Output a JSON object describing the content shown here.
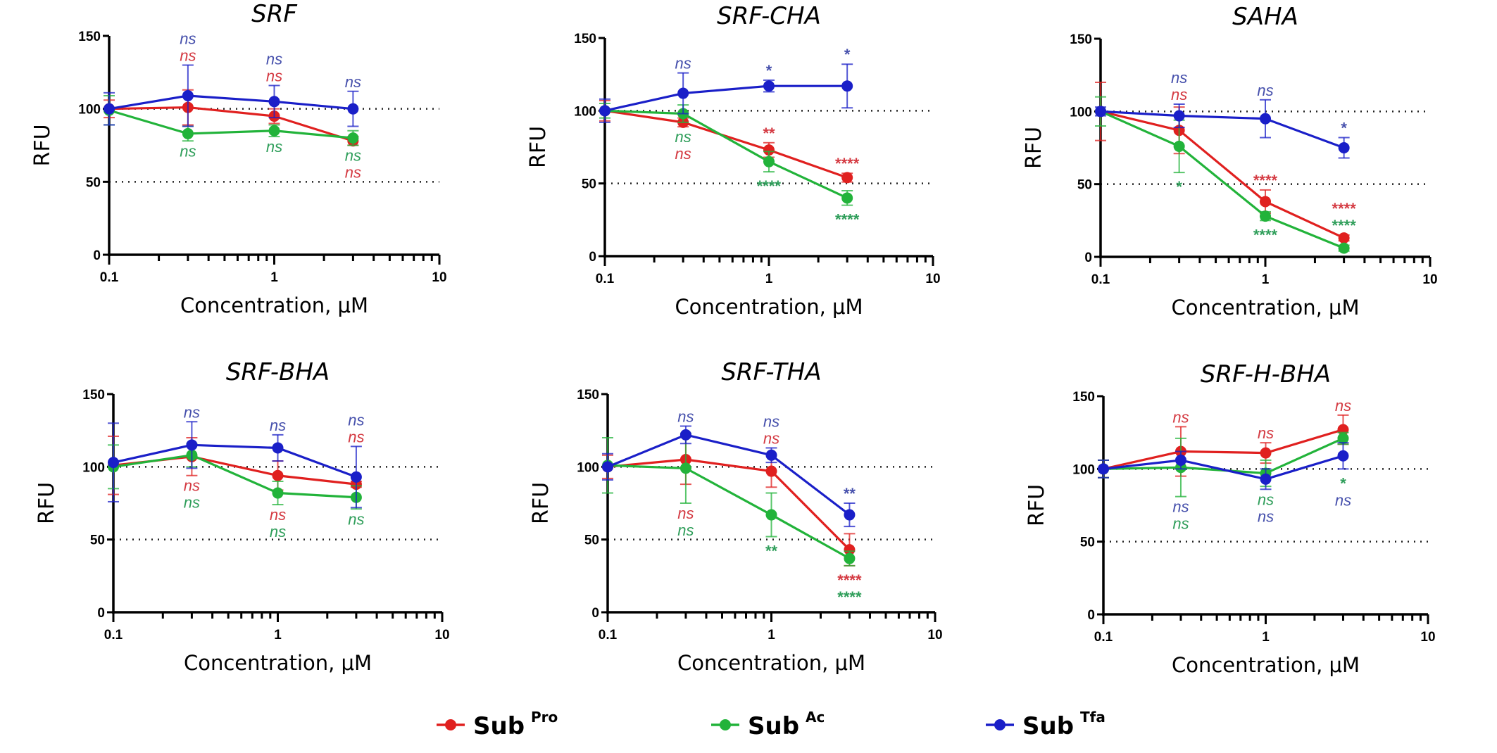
{
  "series_colors": {
    "Pro": "#e0201f",
    "Ac": "#22b33a",
    "Tfa": "#1a1fc8"
  },
  "annotation_colors": {
    "Pro": "#d43a42",
    "Ac": "#2f9e5a",
    "Tfa": "#4650ac"
  },
  "legend": [
    {
      "key": "Pro",
      "base": "Sub",
      "sup": "Pro"
    },
    {
      "key": "Ac",
      "base": "Sub",
      "sup": "Ac"
    },
    {
      "key": "Tfa",
      "base": "Sub",
      "sup": "Tfa"
    }
  ],
  "chart_data": [
    {
      "type": "line",
      "title": "SRF",
      "xlabel": "Concentration, μM",
      "ylabel": "RFU",
      "xscale": "log",
      "xlim": [
        0.1,
        10
      ],
      "ylim": [
        0,
        150
      ],
      "xticks": [
        "0.1",
        "1",
        "10"
      ],
      "yticks": [
        "0",
        "50",
        "100",
        "150"
      ],
      "reference_lines": [
        50,
        100
      ],
      "grid": false,
      "x": [
        0.1,
        0.3,
        1,
        3
      ],
      "series": [
        {
          "key": "Pro",
          "values": [
            100,
            101,
            95,
            78
          ],
          "errors": [
            6,
            12,
            5,
            3
          ]
        },
        {
          "key": "Ac",
          "values": [
            99,
            83,
            85,
            80
          ],
          "errors": [
            10,
            5,
            4,
            5
          ]
        },
        {
          "key": "Tfa",
          "values": [
            100,
            109,
            105,
            100
          ],
          "errors": [
            11,
            21,
            11,
            12
          ]
        }
      ],
      "annotations": [
        {
          "x": 0.3,
          "above": [
            {
              "key": "Tfa",
              "text": "ns"
            },
            {
              "key": "Pro",
              "text": "ns"
            }
          ],
          "below": [
            {
              "key": "Ac",
              "text": "ns"
            }
          ]
        },
        {
          "x": 1,
          "above": [
            {
              "key": "Tfa",
              "text": "ns"
            },
            {
              "key": "Pro",
              "text": "ns"
            }
          ],
          "below": [
            {
              "key": "Ac",
              "text": "ns"
            }
          ]
        },
        {
          "x": 3,
          "above": [
            {
              "key": "Tfa",
              "text": "ns"
            }
          ],
          "below": [
            {
              "key": "Ac",
              "text": "ns"
            },
            {
              "key": "Pro",
              "text": "ns"
            }
          ]
        }
      ]
    },
    {
      "type": "line",
      "title": "SRF-CHA",
      "xlabel": "Concentration, μM",
      "ylabel": "RFU",
      "xscale": "log",
      "xlim": [
        0.1,
        10
      ],
      "ylim": [
        0,
        150
      ],
      "xticks": [
        "0.1",
        "1",
        "10"
      ],
      "yticks": [
        "0",
        "50",
        "100",
        "150"
      ],
      "reference_lines": [
        50,
        100
      ],
      "grid": false,
      "x": [
        0.1,
        0.3,
        1,
        3
      ],
      "series": [
        {
          "key": "Pro",
          "values": [
            100,
            92,
            73,
            54
          ],
          "errors": [
            7,
            3,
            5,
            3
          ]
        },
        {
          "key": "Ac",
          "values": [
            100,
            98,
            65,
            40
          ],
          "errors": [
            5,
            6,
            7,
            5
          ]
        },
        {
          "key": "Tfa",
          "values": [
            100,
            112,
            117,
            117
          ],
          "errors": [
            8,
            14,
            4,
            15
          ]
        }
      ],
      "annotations": [
        {
          "x": 0.3,
          "above": [
            {
              "key": "Tfa",
              "text": "ns"
            }
          ],
          "below": [
            {
              "key": "Ac",
              "text": "ns"
            },
            {
              "key": "Pro",
              "text": "ns"
            }
          ]
        },
        {
          "x": 1,
          "above": [
            {
              "key": "Tfa",
              "text": "*"
            }
          ],
          "below": [
            {
              "key": "Ac",
              "text": "****"
            }
          ],
          "above_pro": [
            {
              "key": "Pro",
              "text": "**"
            }
          ]
        },
        {
          "x": 3,
          "above": [
            {
              "key": "Tfa",
              "text": "*"
            }
          ],
          "below": [
            {
              "key": "Ac",
              "text": "****"
            }
          ],
          "above_pro": [
            {
              "key": "Pro",
              "text": "****"
            }
          ]
        }
      ]
    },
    {
      "type": "line",
      "title": "SAHA",
      "xlabel": "Concentration, μM",
      "ylabel": "RFU",
      "xscale": "log",
      "xlim": [
        0.1,
        10
      ],
      "ylim": [
        0,
        150
      ],
      "xticks": [
        "0.1",
        "1",
        "10"
      ],
      "yticks": [
        "0",
        "50",
        "100",
        "150"
      ],
      "reference_lines": [
        50,
        100
      ],
      "grid": false,
      "x": [
        0.1,
        0.3,
        1,
        3
      ],
      "series": [
        {
          "key": "Pro",
          "values": [
            100,
            87,
            38,
            13
          ],
          "errors": [
            20,
            16,
            8,
            2
          ]
        },
        {
          "key": "Ac",
          "values": [
            100,
            76,
            28,
            6
          ],
          "errors": [
            10,
            18,
            3,
            2
          ]
        },
        {
          "key": "Tfa",
          "values": [
            100,
            97,
            95,
            75
          ],
          "errors": [
            3,
            8,
            13,
            7
          ]
        }
      ],
      "annotations": [
        {
          "x": 0.3,
          "above": [
            {
              "key": "Tfa",
              "text": "ns"
            },
            {
              "key": "Pro",
              "text": "ns"
            }
          ],
          "below": [
            {
              "key": "Ac",
              "text": "*"
            }
          ]
        },
        {
          "x": 1,
          "above": [
            {
              "key": "Tfa",
              "text": "ns"
            }
          ],
          "below": [
            {
              "key": "Ac",
              "text": "****"
            }
          ],
          "above_pro": [
            {
              "key": "Pro",
              "text": "****"
            }
          ]
        },
        {
          "x": 3,
          "above": [
            {
              "key": "Tfa",
              "text": "*"
            }
          ],
          "below": [],
          "above_pro": [
            {
              "key": "Pro",
              "text": "****"
            },
            {
              "key": "Ac",
              "text": "****"
            }
          ]
        }
      ]
    },
    {
      "type": "line",
      "title": "SRF-BHA",
      "xlabel": "Concentration, μM",
      "ylabel": "RFU",
      "xscale": "log",
      "xlim": [
        0.1,
        10
      ],
      "ylim": [
        0,
        150
      ],
      "xticks": [
        "0.1",
        "1",
        "10"
      ],
      "yticks": [
        "0",
        "50",
        "100",
        "150"
      ],
      "reference_lines": [
        50,
        100
      ],
      "grid": false,
      "x": [
        0.1,
        0.3,
        1,
        3
      ],
      "series": [
        {
          "key": "Pro",
          "values": [
            101,
            107,
            94,
            88
          ],
          "errors": [
            20,
            13,
            10,
            2
          ]
        },
        {
          "key": "Ac",
          "values": [
            100,
            108,
            82,
            79
          ],
          "errors": [
            15,
            8,
            8,
            8
          ]
        },
        {
          "key": "Tfa",
          "values": [
            103,
            115,
            113,
            93
          ],
          "errors": [
            27,
            16,
            9,
            21
          ]
        }
      ],
      "annotations": [
        {
          "x": 0.3,
          "above": [
            {
              "key": "Tfa",
              "text": "ns"
            }
          ],
          "below": [
            {
              "key": "Pro",
              "text": "ns"
            },
            {
              "key": "Ac",
              "text": "ns"
            }
          ]
        },
        {
          "x": 1,
          "above": [
            {
              "key": "Tfa",
              "text": "ns"
            }
          ],
          "below": [
            {
              "key": "Pro",
              "text": "ns"
            },
            {
              "key": "Ac",
              "text": "ns"
            }
          ]
        },
        {
          "x": 3,
          "above": [
            {
              "key": "Tfa",
              "text": "ns"
            },
            {
              "key": "Pro",
              "text": "ns"
            }
          ],
          "below": [
            {
              "key": "Ac",
              "text": "ns"
            }
          ]
        }
      ]
    },
    {
      "type": "line",
      "title": "SRF-THA",
      "xlabel": "Concentration, μM",
      "ylabel": "RFU",
      "xscale": "log",
      "xlim": [
        0.1,
        10
      ],
      "ylim": [
        0,
        150
      ],
      "xticks": [
        "0.1",
        "1",
        "10"
      ],
      "yticks": [
        "0",
        "50",
        "100",
        "150"
      ],
      "reference_lines": [
        50,
        100
      ],
      "grid": false,
      "x": [
        0.1,
        0.3,
        1,
        3
      ],
      "series": [
        {
          "key": "Pro",
          "values": [
            100,
            105,
            97,
            43
          ],
          "errors": [
            8,
            17,
            11,
            11
          ]
        },
        {
          "key": "Ac",
          "values": [
            101,
            99,
            67,
            37
          ],
          "errors": [
            19,
            24,
            15,
            5
          ]
        },
        {
          "key": "Tfa",
          "values": [
            100,
            122,
            108,
            67
          ],
          "errors": [
            9,
            6,
            5,
            8
          ]
        }
      ],
      "annotations": [
        {
          "x": 0.3,
          "above": [
            {
              "key": "Tfa",
              "text": "ns"
            }
          ],
          "below": [
            {
              "key": "Pro",
              "text": "ns"
            },
            {
              "key": "Ac",
              "text": "ns"
            }
          ]
        },
        {
          "x": 1,
          "above": [
            {
              "key": "Tfa",
              "text": "ns"
            },
            {
              "key": "Pro",
              "text": "ns"
            }
          ],
          "below": [
            {
              "key": "Ac",
              "text": "**"
            }
          ]
        },
        {
          "x": 3,
          "above": [
            {
              "key": "Tfa",
              "text": "**"
            }
          ],
          "below": [
            {
              "key": "Pro",
              "text": "****"
            },
            {
              "key": "Ac",
              "text": "****"
            }
          ]
        }
      ]
    },
    {
      "type": "line",
      "title": "SRF-H-BHA",
      "xlabel": "Concentration, μM",
      "ylabel": "RFU",
      "xscale": "log",
      "xlim": [
        0.1,
        10
      ],
      "ylim": [
        0,
        150
      ],
      "xticks": [
        "0.1",
        "1",
        "10"
      ],
      "yticks": [
        "0",
        "50",
        "100",
        "150"
      ],
      "reference_lines": [
        50,
        100
      ],
      "grid": false,
      "x": [
        0.1,
        0.3,
        1,
        3
      ],
      "series": [
        {
          "key": "Pro",
          "values": [
            100,
            112,
            111,
            127
          ],
          "errors": [
            6,
            17,
            7,
            10
          ]
        },
        {
          "key": "Ac",
          "values": [
            100,
            101,
            97,
            121
          ],
          "errors": [
            6,
            20,
            9,
            4
          ]
        },
        {
          "key": "Tfa",
          "values": [
            100,
            106,
            93,
            109
          ],
          "errors": [
            6,
            6,
            7,
            9
          ]
        }
      ],
      "annotations": [
        {
          "x": 0.3,
          "above": [
            {
              "key": "Pro",
              "text": "ns"
            }
          ],
          "below": [
            {
              "key": "Tfa",
              "text": "ns"
            },
            {
              "key": "Ac",
              "text": "ns"
            }
          ]
        },
        {
          "x": 1,
          "above": [
            {
              "key": "Pro",
              "text": "ns"
            }
          ],
          "below": [
            {
              "key": "Ac",
              "text": "ns"
            },
            {
              "key": "Tfa",
              "text": "ns"
            }
          ]
        },
        {
          "x": 3,
          "above": [
            {
              "key": "Pro",
              "text": "ns"
            }
          ],
          "below": [
            {
              "key": "Ac",
              "text": "*"
            },
            {
              "key": "Tfa",
              "text": "ns"
            }
          ]
        }
      ]
    }
  ]
}
